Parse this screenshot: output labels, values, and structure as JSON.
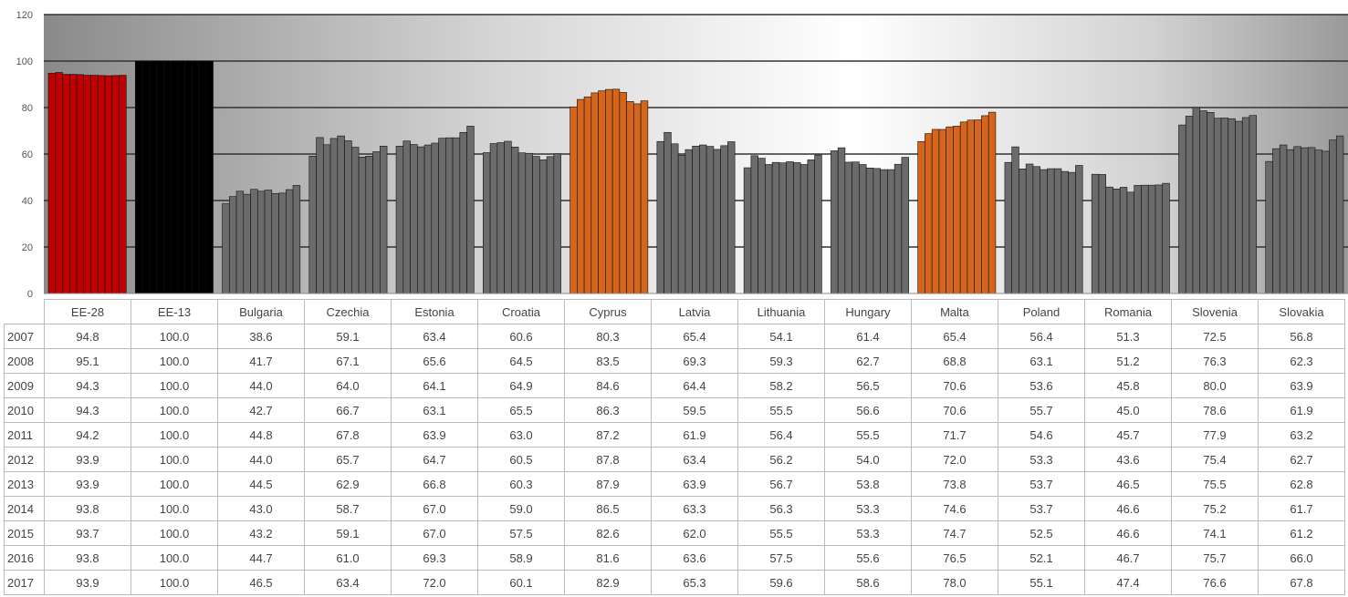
{
  "chart_data": {
    "type": "bar",
    "title": "",
    "xlabel": "",
    "ylabel": "",
    "ylim": [
      0,
      120
    ],
    "yticks": [
      0,
      20,
      40,
      60,
      80,
      100,
      120
    ],
    "grid": true,
    "years": [
      "2007",
      "2008",
      "2009",
      "2010",
      "2011",
      "2012",
      "2013",
      "2014",
      "2015",
      "2016",
      "2017"
    ],
    "countries": [
      {
        "name": "EE-28",
        "color": "#c00000",
        "values": [
          94.8,
          95.1,
          94.3,
          94.3,
          94.2,
          93.9,
          93.9,
          93.8,
          93.7,
          93.8,
          93.9
        ],
        "labels": [
          "94.8",
          "95.1",
          "94.3",
          "94.3",
          "94.2",
          "93.9",
          "93.9",
          "93.8",
          "93.7",
          "93.8",
          "93.9"
        ]
      },
      {
        "name": "EE-13",
        "color": "#000000",
        "values": [
          100,
          100,
          100,
          100,
          100,
          100,
          100,
          100,
          100,
          100,
          100
        ],
        "labels": [
          "100.0",
          "100.0",
          "100.0",
          "100.0",
          "100.0",
          "100.0",
          "100.0",
          "100.0",
          "100.0",
          "100.0",
          "100.0"
        ]
      },
      {
        "name": "Bulgaria",
        "color": "#6b6b6b",
        "values": [
          38.6,
          41.7,
          44.0,
          42.7,
          44.8,
          44.0,
          44.5,
          43.0,
          43.2,
          44.7,
          46.5
        ],
        "labels": [
          "38.6",
          "41.7",
          "44.0",
          "42.7",
          "44.8",
          "44.0",
          "44.5",
          "43.0",
          "43.2",
          "44.7",
          "46.5"
        ]
      },
      {
        "name": "Czechia",
        "color": "#6b6b6b",
        "values": [
          59.1,
          67.1,
          64.0,
          66.7,
          67.8,
          65.7,
          62.9,
          58.7,
          59.1,
          61.0,
          63.4
        ],
        "labels": [
          "59.1",
          "67.1",
          "64.0",
          "66.7",
          "67.8",
          "65.7",
          "62.9",
          "58.7",
          "59.1",
          "61.0",
          "63.4"
        ]
      },
      {
        "name": "Estonia",
        "color": "#6b6b6b",
        "values": [
          63.4,
          65.6,
          64.1,
          63.1,
          63.9,
          64.7,
          66.8,
          67.0,
          67.0,
          69.3,
          72.0
        ],
        "labels": [
          "63.4",
          "65.6",
          "64.1",
          "63.1",
          "63.9",
          "64.7",
          "66.8",
          "67.0",
          "67.0",
          "69.3",
          "72.0"
        ]
      },
      {
        "name": "Croatia",
        "color": "#6b6b6b",
        "values": [
          60.6,
          64.5,
          64.9,
          65.5,
          63.0,
          60.5,
          60.3,
          59.0,
          57.5,
          58.9,
          60.1
        ],
        "labels": [
          "60.6",
          "64.5",
          "64.9",
          "65.5",
          "63.0",
          "60.5",
          "60.3",
          "59.0",
          "57.5",
          "58.9",
          "60.1"
        ]
      },
      {
        "name": "Cyprus",
        "color": "#d4651a",
        "values": [
          80.3,
          83.5,
          84.6,
          86.3,
          87.2,
          87.8,
          87.9,
          86.5,
          82.6,
          81.6,
          82.9
        ],
        "labels": [
          "80.3",
          "83.5",
          "84.6",
          "86.3",
          "87.2",
          "87.8",
          "87.9",
          "86.5",
          "82.6",
          "81.6",
          "82.9"
        ]
      },
      {
        "name": "Latvia",
        "color": "#6b6b6b",
        "values": [
          65.4,
          69.3,
          64.4,
          59.5,
          61.9,
          63.4,
          63.9,
          63.3,
          62.0,
          63.6,
          65.3
        ],
        "labels": [
          "65.4",
          "69.3",
          "64.4",
          "59.5",
          "61.9",
          "63.4",
          "63.9",
          "63.3",
          "62.0",
          "63.6",
          "65.3"
        ]
      },
      {
        "name": "Lithuania",
        "color": "#6b6b6b",
        "values": [
          54.1,
          59.3,
          58.2,
          55.5,
          56.4,
          56.2,
          56.7,
          56.3,
          55.5,
          57.5,
          59.6
        ],
        "labels": [
          "54.1",
          "59.3",
          "58.2",
          "55.5",
          "56.4",
          "56.2",
          "56.7",
          "56.3",
          "55.5",
          "57.5",
          "59.6"
        ]
      },
      {
        "name": "Hungary",
        "color": "#6b6b6b",
        "values": [
          61.4,
          62.7,
          56.5,
          56.6,
          55.5,
          54.0,
          53.8,
          53.3,
          53.3,
          55.6,
          58.6
        ],
        "labels": [
          "61.4",
          "62.7",
          "56.5",
          "56.6",
          "55.5",
          "54.0",
          "53.8",
          "53.3",
          "53.3",
          "55.6",
          "58.6"
        ]
      },
      {
        "name": "Malta",
        "color": "#d4651a",
        "values": [
          65.4,
          68.8,
          70.6,
          70.6,
          71.7,
          72.0,
          73.8,
          74.6,
          74.7,
          76.5,
          78.0
        ],
        "labels": [
          "65.4",
          "68.8",
          "70.6",
          "70.6",
          "71.7",
          "72.0",
          "73.8",
          "74.6",
          "74.7",
          "76.5",
          "78.0"
        ]
      },
      {
        "name": "Poland",
        "color": "#6b6b6b",
        "values": [
          56.4,
          63.1,
          53.6,
          55.7,
          54.6,
          53.3,
          53.7,
          53.7,
          52.5,
          52.1,
          55.1
        ],
        "labels": [
          "56.4",
          "63.1",
          "53.6",
          "55.7",
          "54.6",
          "53.3",
          "53.7",
          "53.7",
          "52.5",
          "52.1",
          "55.1"
        ]
      },
      {
        "name": "Romania",
        "color": "#6b6b6b",
        "values": [
          51.3,
          51.2,
          45.8,
          45.0,
          45.7,
          43.6,
          46.5,
          46.6,
          46.6,
          46.7,
          47.4
        ],
        "labels": [
          "51.3",
          "51.2",
          "45.8",
          "45.0",
          "45.7",
          "43.6",
          "46.5",
          "46.6",
          "46.6",
          "46.7",
          "47.4"
        ]
      },
      {
        "name": "Slovenia",
        "color": "#6b6b6b",
        "values": [
          72.5,
          76.3,
          80.0,
          78.6,
          77.9,
          75.4,
          75.5,
          75.2,
          74.1,
          75.7,
          76.6
        ],
        "labels": [
          "72.5",
          "76.3",
          "80.0",
          "78.6",
          "77.9",
          "75.4",
          "75.5",
          "75.2",
          "74.1",
          "75.7",
          "76.6"
        ]
      },
      {
        "name": "Slovakia",
        "color": "#6b6b6b",
        "values": [
          56.8,
          62.3,
          63.9,
          61.9,
          63.2,
          62.7,
          62.8,
          61.7,
          61.2,
          66.0,
          67.8
        ],
        "labels": [
          "56.8",
          "62.3",
          "63.9",
          "61.9",
          "63.2",
          "62.7",
          "62.8",
          "61.7",
          "61.2",
          "66.0",
          "67.8"
        ]
      }
    ]
  }
}
